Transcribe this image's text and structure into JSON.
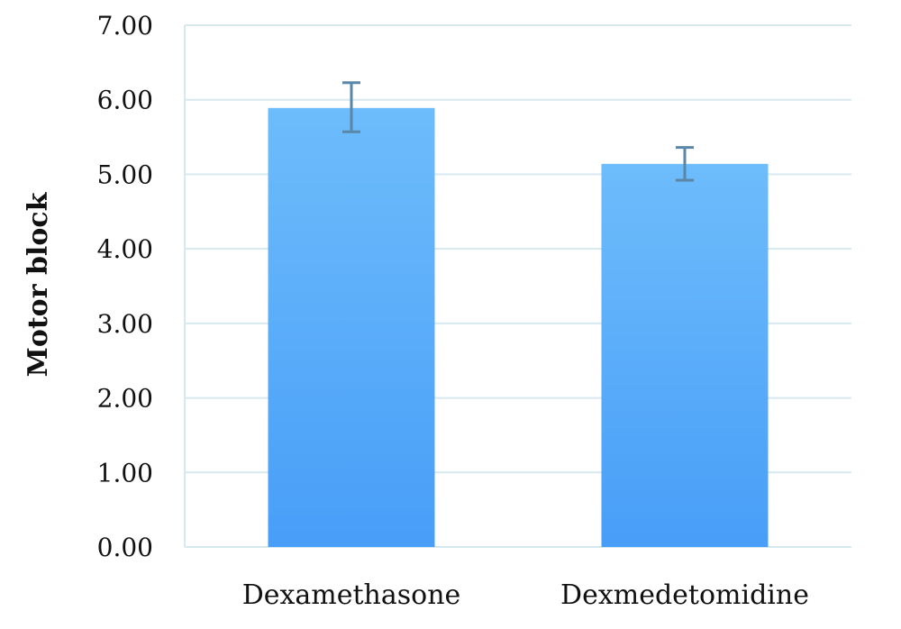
{
  "chart_data": {
    "type": "bar",
    "title": "",
    "xlabel": "",
    "ylabel": "Motor block",
    "categories": [
      "Dexamethasone",
      "Dexmedetomidine"
    ],
    "series": [
      {
        "values": [
          5.89,
          5.14
        ],
        "error_low": [
          5.57,
          4.92
        ],
        "error_high": [
          6.23,
          5.36
        ]
      }
    ],
    "ylim": [
      0,
      7
    ],
    "yticks": [
      "0.00",
      "1.00",
      "2.00",
      "3.00",
      "4.00",
      "5.00",
      "6.00",
      "7.00"
    ],
    "grid": true,
    "legend": "none",
    "bar_color_top": "#6dbcfb",
    "bar_color_bottom": "#489ef8",
    "grid_color": "#d6e9ef",
    "error_bar_color": "#5a86a8"
  }
}
